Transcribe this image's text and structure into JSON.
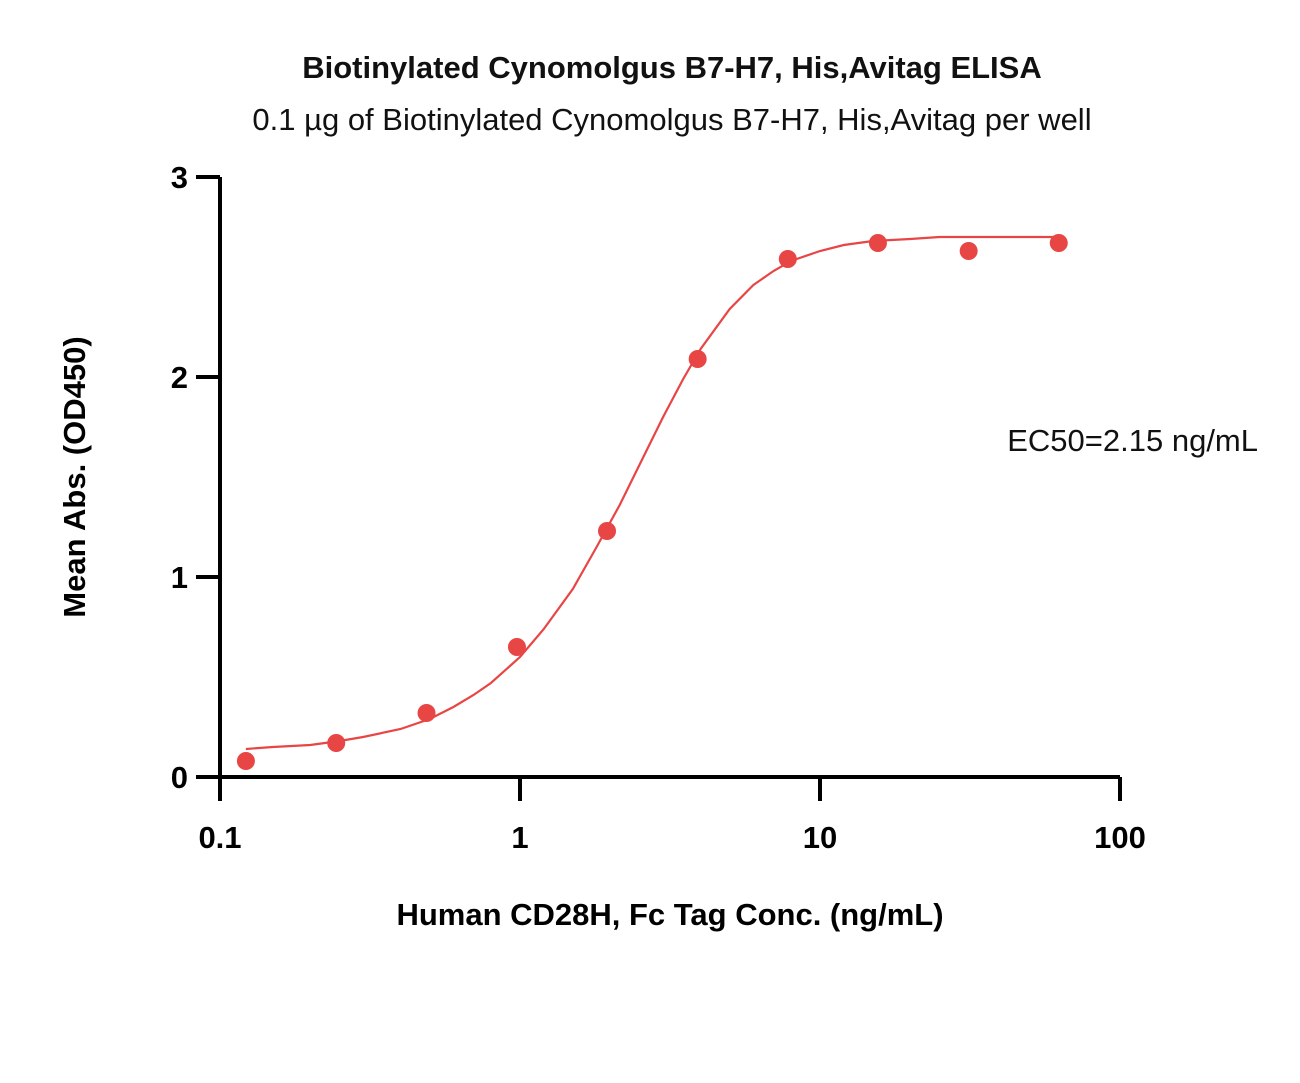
{
  "chart_data": {
    "type": "scatter",
    "title": "Biotinylated Cynomolgus B7-H7, His,Avitag ELISA",
    "subtitle": "0.1 µg of Biotinylated Cynomolgus B7-H7, His,Avitag per well",
    "xlabel": "Human CD28H, Fc Tag Conc. (ng/mL)",
    "ylabel": "Mean Abs. (OD450)",
    "x_scale": "log",
    "xlim": [
      0.1,
      100
    ],
    "ylim": [
      0,
      3
    ],
    "x_ticks": [
      0.1,
      1,
      10,
      100
    ],
    "x_tick_labels": [
      "0.1",
      "1",
      "10",
      "100"
    ],
    "y_ticks": [
      0,
      1,
      2,
      3
    ],
    "y_tick_labels": [
      "0",
      "1",
      "2",
      "3"
    ],
    "grid": false,
    "legend": "none",
    "annotation": "EC50=2.15 ng/mL",
    "color": "#E84545",
    "series": [
      {
        "x": [
          0.122,
          0.244,
          0.488,
          0.977,
          1.95,
          3.91,
          7.81,
          15.6,
          31.3,
          62.5
        ],
        "y": [
          0.08,
          0.17,
          0.32,
          0.65,
          1.23,
          2.09,
          2.59,
          2.67,
          2.63,
          2.67
        ]
      }
    ],
    "fit": {
      "model": "4PL",
      "x": [
        0.122,
        0.15,
        0.2,
        0.25,
        0.3,
        0.4,
        0.5,
        0.6,
        0.7,
        0.8,
        1.0,
        1.2,
        1.5,
        1.8,
        2.15,
        2.5,
        3.0,
        3.5,
        4.0,
        5.0,
        6.0,
        7.0,
        8.0,
        10,
        12,
        15,
        20,
        25,
        30,
        40,
        50,
        62.5
      ],
      "y": [
        0.14,
        0.15,
        0.16,
        0.18,
        0.2,
        0.24,
        0.29,
        0.35,
        0.41,
        0.47,
        0.6,
        0.74,
        0.94,
        1.15,
        1.36,
        1.56,
        1.8,
        1.99,
        2.14,
        2.34,
        2.46,
        2.53,
        2.58,
        2.63,
        2.66,
        2.68,
        2.69,
        2.7,
        2.7,
        2.7,
        2.7,
        2.7
      ]
    }
  }
}
